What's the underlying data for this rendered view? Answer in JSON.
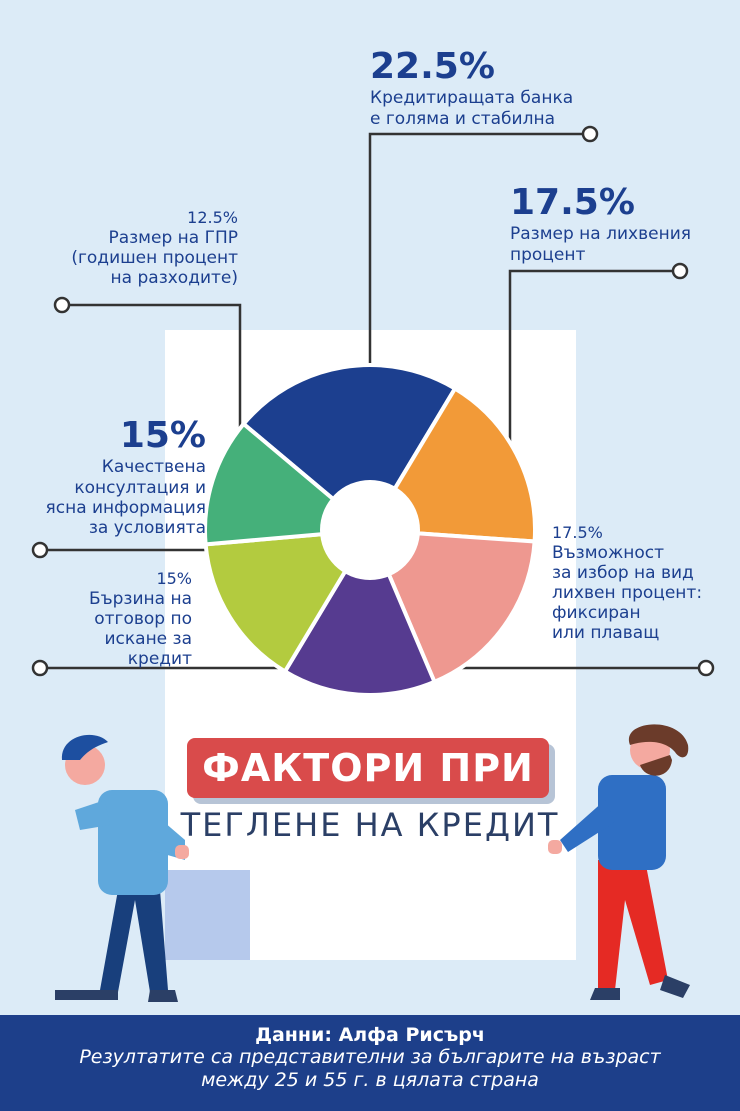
{
  "chart_data": {
    "type": "pie",
    "title": "ФАКТОРИ ПРИ",
    "subtitle": "ТЕГЛЕНЕ НА КРЕДИТ",
    "slices": [
      {
        "label": "Кредитиращата банка е голяма и стабилна",
        "value": 22.5,
        "value_text": "22.5%",
        "color": "#1c3f8f"
      },
      {
        "label": "Размер на лихвения процент",
        "value": 17.5,
        "value_text": "17.5%",
        "color": "#f29a38"
      },
      {
        "label": "Възможност за избор на вид лихвен процент: фиксиран или плаващ",
        "value": 17.5,
        "value_text": "17.5%",
        "color": "#ee9890"
      },
      {
        "label": "Бързина на отговор по искане за кредит",
        "value": 15,
        "value_text": "15%",
        "color": "#563b90"
      },
      {
        "label": "Качествена консултация и ясна информация за условията",
        "value": 15,
        "value_text": "15%",
        "color": "#b3cb3f"
      },
      {
        "label": "Размер на ГПР (годишен процент на разходите)",
        "value": 12.5,
        "value_text": "12.5%",
        "color": "#45b07a"
      }
    ]
  },
  "labels": {
    "bank": {
      "pct": "22.5%",
      "lines": [
        "Кредитиращата банка",
        "е голяма и стабилна"
      ]
    },
    "rate": {
      "pct": "17.5%",
      "lines": [
        "Размер на лихвения",
        "процент"
      ]
    },
    "gpr": {
      "pct": "12.5%",
      "lines": [
        "Размер на ГПР",
        "(годишен процент",
        "на разходите)"
      ]
    },
    "consult": {
      "pct": "15%",
      "lines": [
        "Качествена",
        "консултация и",
        "ясна информация",
        "за условията"
      ]
    },
    "speed": {
      "pct": "15%",
      "lines": [
        "Бързина на",
        "отговор по",
        "искане за кредит"
      ]
    },
    "choice": {
      "pct": "17.5%",
      "lines": [
        "Възможност",
        "за избор на вид",
        "лихвен процент:",
        "фиксиран",
        "или плаващ"
      ]
    }
  },
  "title": {
    "main": "ФАКТОРИ ПРИ",
    "sub": "ТЕГЛЕНЕ НА КРЕДИТ"
  },
  "footer": {
    "source": "Данни: Алфа Рисърч",
    "note_line1": "Резултатите са представителни за българите на възраст",
    "note_line2": "между 25 и 55 г. в цялата страна"
  },
  "colors": {
    "background": "#dcebf7",
    "ink": "#1c3f8f",
    "accent": "#d94b4b",
    "footer": "#1d3f8a"
  }
}
